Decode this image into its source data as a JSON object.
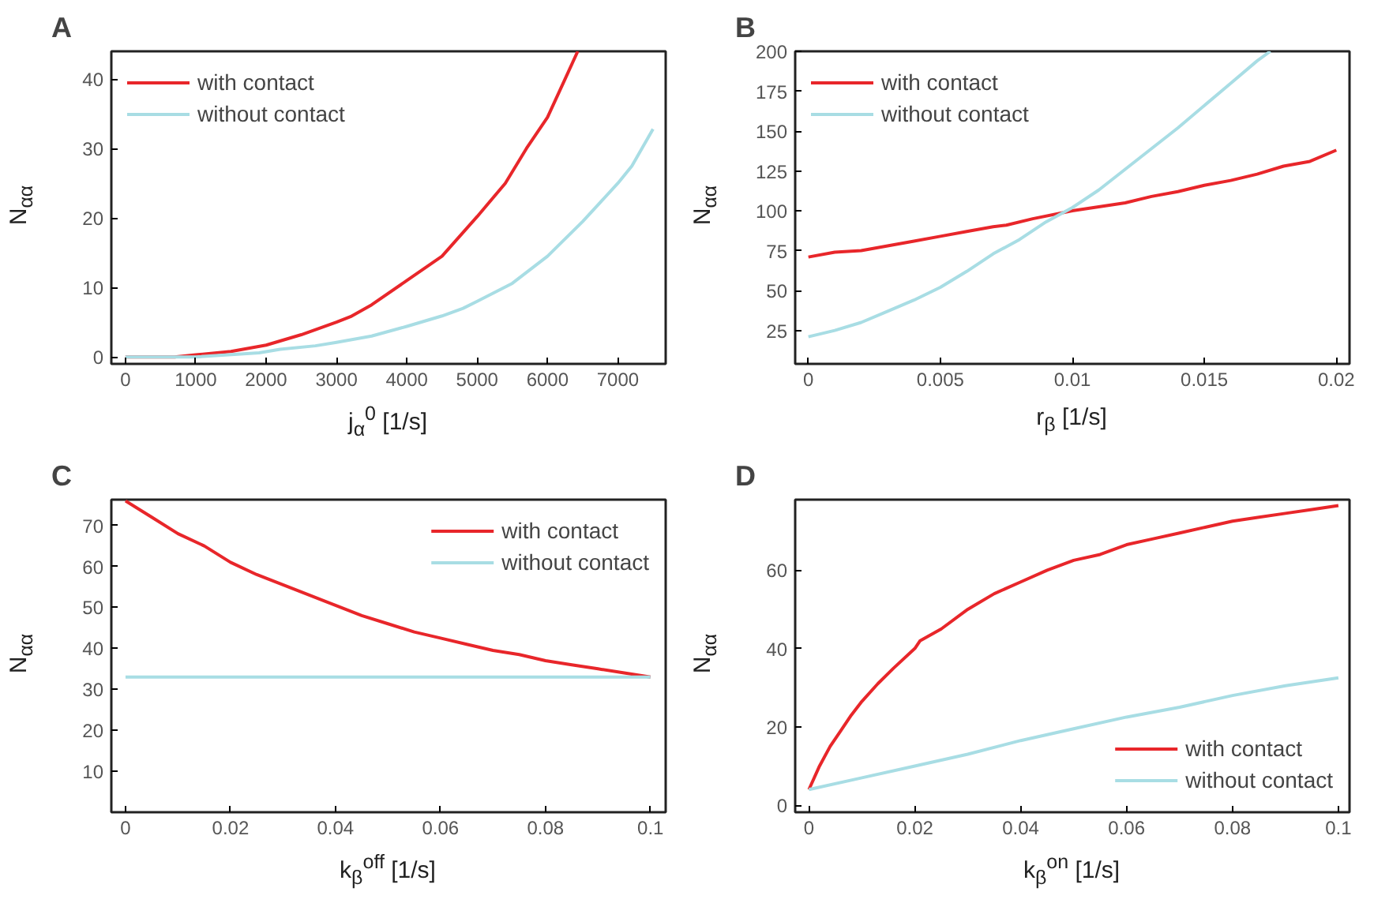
{
  "chart_data": [
    {
      "type": "line",
      "title": "A",
      "xlabel": "j$_{α}$$^{0}$ [1/s]",
      "ylabel": "N$_{αα}$",
      "xlim": [
        -200,
        7680
      ],
      "ylim": [
        -1,
        44
      ],
      "xticks": [
        0,
        1000,
        2000,
        3000,
        4000,
        5000,
        6000,
        7000
      ],
      "yticks": [
        0,
        10,
        20,
        30,
        40
      ],
      "grid": false,
      "legend": "top left",
      "series": [
        {
          "name": "with contact",
          "color": "#e8262a",
          "x": [
            0,
            700,
            1000,
            1500,
            2000,
            2500,
            3000,
            3200,
            3500,
            4000,
            4500,
            5000,
            5400,
            5700,
            6000,
            6250,
            6430
          ],
          "values": [
            0,
            0,
            0.3,
            0.8,
            1.7,
            3.2,
            5,
            5.8,
            7.5,
            11,
            14.5,
            20.2,
            25,
            30,
            34.5,
            40,
            44
          ]
        },
        {
          "name": "without contact",
          "color": "#a8dde4",
          "x": [
            0,
            1000,
            1900,
            2200,
            2700,
            3000,
            3500,
            4000,
            4500,
            4800,
            5000,
            5500,
            6000,
            6500,
            7000,
            7200,
            7500
          ],
          "values": [
            0,
            0,
            0.6,
            1.1,
            1.6,
            2.1,
            3,
            4.4,
            5.9,
            7,
            8,
            10.6,
            14.5,
            19.5,
            25,
            27.5,
            32.8
          ]
        }
      ]
    },
    {
      "type": "line",
      "title": "B",
      "xlabel": "r$_{β}$ [1/s]",
      "ylabel": "N$_{αα}$",
      "xlim": [
        -0.0005,
        0.0205
      ],
      "ylim": [
        4,
        200
      ],
      "xticks": [
        0,
        0.005,
        0.01,
        0.015,
        0.02
      ],
      "yticks": [
        25,
        50,
        75,
        100,
        125,
        150,
        175,
        200
      ],
      "grid": false,
      "legend": "top left",
      "series": [
        {
          "name": "with contact",
          "color": "#e8262a",
          "x": [
            0,
            0.001,
            0.002,
            0.003,
            0.004,
            0.005,
            0.006,
            0.007,
            0.0075,
            0.0085,
            0.01,
            0.012,
            0.013,
            0.014,
            0.015,
            0.016,
            0.017,
            0.018,
            0.019,
            0.02
          ],
          "values": [
            71,
            74,
            75,
            78,
            81,
            84,
            87,
            90,
            91,
            95,
            100,
            105,
            109,
            112,
            116,
            119,
            123,
            128,
            131,
            138
          ]
        },
        {
          "name": "without contact",
          "color": "#a8dde4",
          "x": [
            0,
            0.001,
            0.002,
            0.003,
            0.004,
            0.005,
            0.006,
            0.007,
            0.008,
            0.009,
            0.01,
            0.011,
            0.012,
            0.013,
            0.014,
            0.015,
            0.016,
            0.017,
            0.0175
          ],
          "values": [
            21,
            25,
            30,
            37,
            44,
            52,
            62,
            73,
            82,
            93,
            102,
            113,
            126,
            139,
            152,
            166,
            180,
            194,
            200
          ]
        }
      ]
    },
    {
      "type": "line",
      "title": "C",
      "xlabel": "k$_{β}$$^{off}$ [1/s]",
      "ylabel": "N$_{αα}$",
      "xlim": [
        -0.0027,
        0.1029
      ],
      "ylim": [
        0,
        76.3
      ],
      "xticks": [
        0,
        0.02,
        0.04,
        0.06,
        0.08,
        0.1
      ],
      "yticks": [
        10,
        20,
        30,
        40,
        50,
        60,
        70
      ],
      "grid": false,
      "legend": "top right",
      "series": [
        {
          "name": "with contact",
          "color": "#e8262a",
          "x": [
            0,
            0.005,
            0.01,
            0.015,
            0.02,
            0.025,
            0.03,
            0.035,
            0.04,
            0.045,
            0.05,
            0.055,
            0.06,
            0.065,
            0.07,
            0.075,
            0.08,
            0.085,
            0.09,
            0.095,
            0.1
          ],
          "values": [
            76,
            72,
            68,
            65,
            61,
            58,
            55.5,
            53,
            50.5,
            48,
            46,
            44,
            42.5,
            41,
            39.5,
            38.5,
            37,
            36,
            35,
            34,
            33
          ]
        },
        {
          "name": "without contact",
          "color": "#a8dde4",
          "x": [
            0,
            0.1
          ],
          "values": [
            33,
            33
          ]
        }
      ]
    },
    {
      "type": "line",
      "title": "D",
      "xlabel": "k$_{β}$$^{on}$ [1/s]",
      "ylabel": "N$_{αα}$",
      "xlim": [
        -0.0026,
        0.1021
      ],
      "ylim": [
        -1.8,
        78
      ],
      "xticks": [
        0,
        0.02,
        0.04,
        0.06,
        0.08,
        0.1
      ],
      "yticks": [
        0,
        20,
        40,
        60
      ],
      "grid": false,
      "legend": "bottom right",
      "series": [
        {
          "name": "with contact",
          "color": "#e8262a",
          "x": [
            0,
            0.002,
            0.004,
            0.006,
            0.008,
            0.01,
            0.013,
            0.016,
            0.02,
            0.021,
            0.025,
            0.03,
            0.035,
            0.04,
            0.045,
            0.05,
            0.055,
            0.06,
            0.065,
            0.07,
            0.075,
            0.08,
            0.085,
            0.09,
            0.095,
            0.1
          ],
          "values": [
            4,
            10,
            15,
            19,
            23,
            26.5,
            31,
            35,
            40,
            42,
            45,
            50,
            54,
            57,
            60,
            62.5,
            64,
            66.5,
            68,
            69.5,
            71,
            72.5,
            73.5,
            74.5,
            75.5,
            76.5
          ]
        },
        {
          "name": "without contact",
          "color": "#a8dde4",
          "x": [
            0,
            0.01,
            0.02,
            0.03,
            0.04,
            0.05,
            0.06,
            0.07,
            0.08,
            0.09,
            0.1
          ],
          "values": [
            4,
            7,
            10,
            13,
            16.5,
            19.5,
            22.5,
            25,
            28,
            30.5,
            32.5
          ]
        }
      ]
    }
  ]
}
